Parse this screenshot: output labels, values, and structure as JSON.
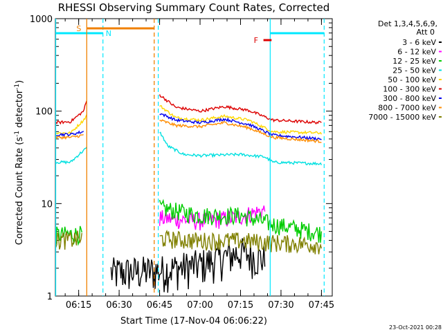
{
  "chart_data": {
    "type": "line",
    "title": "RHESSI Observing Summary Count Rates, Corrected",
    "xlabel": "Start Time (17-Nov-04 06:06:22)",
    "ylabel_main": "Corrected Count Rate (s",
    "ylabel_sup1": "-1",
    "ylabel_mid": " detector",
    "ylabel_sup2": "-1",
    "ylabel_end": ")",
    "yscale": "log",
    "ylim": [
      1,
      1000
    ],
    "xlim": [
      "06:06:22",
      "07:49:00"
    ],
    "xticks": [
      "06:15",
      "06:30",
      "06:45",
      "07:00",
      "07:15",
      "07:30",
      "07:45"
    ],
    "yticks": [
      "1",
      "10",
      "100",
      "1000"
    ],
    "legend_position": "right",
    "legend_header": [
      "Det 1,3,4,5,6,9,",
      "Att 0"
    ],
    "annotations": {
      "S": "S",
      "N": "N",
      "F": "F"
    },
    "footer_date": "23-Oct-2021 00:28",
    "time_segments": {
      "data_gap": [
        "06:18:00",
        "06:44:30"
      ],
      "night": [
        "06:24:00",
        "06:44:30"
      ],
      "saa_bar": [
        "06:18:00",
        "06:43:00"
      ],
      "night_bars": [
        [
          "06:06:22",
          "06:24:00"
        ],
        [
          "07:26:00",
          "07:46:00"
        ]
      ],
      "night_lines": [
        "06:06:30",
        "06:24:00",
        "06:44:30",
        "07:26:00",
        "07:46:00"
      ],
      "flare_marker": [
        "07:23:30",
        "07:26:30"
      ]
    },
    "series": [
      {
        "name": "3 - 6 keV",
        "color": "#000000",
        "pre": null,
        "post": [
          [
            6.45,
            1.8
          ],
          [
            6.75,
            1.9
          ],
          [
            7.0,
            2.2
          ],
          [
            7.25,
            3.0
          ],
          [
            7.4,
            2.5
          ]
        ]
      },
      {
        "name": "6 - 12 keV",
        "color": "#ff00ff",
        "pre": null,
        "post": [
          [
            6.75,
            7.0
          ],
          [
            7.0,
            6.5
          ],
          [
            7.2,
            7.0
          ],
          [
            7.4,
            8.5
          ]
        ]
      },
      {
        "name": "12 - 25 keV",
        "color": "#00cc00",
        "pre": [
          [
            6.106,
            4.6
          ],
          [
            6.27,
            4.7
          ]
        ],
        "post": [
          [
            6.75,
            9.0
          ],
          [
            7.0,
            7.5
          ],
          [
            7.25,
            7.5
          ],
          [
            7.45,
            6.0
          ],
          [
            7.75,
            4.8
          ]
        ]
      },
      {
        "name": "25 - 50 keV",
        "color": "#00e0e0",
        "pre": [
          [
            6.106,
            28
          ],
          [
            6.2,
            28
          ],
          [
            6.26,
            35
          ],
          [
            6.3,
            40
          ]
        ],
        "post": [
          [
            6.75,
            60
          ],
          [
            6.8,
            42
          ],
          [
            6.9,
            34
          ],
          [
            7.0,
            33
          ],
          [
            7.25,
            34
          ],
          [
            7.4,
            32
          ],
          [
            7.45,
            28
          ],
          [
            7.75,
            27
          ]
        ]
      },
      {
        "name": "50 - 100 keV",
        "color": "#ffd700",
        "pre": [
          [
            6.106,
            58
          ],
          [
            6.2,
            58
          ],
          [
            6.28,
            80
          ],
          [
            6.3,
            90
          ]
        ],
        "post": [
          [
            6.75,
            115
          ],
          [
            6.85,
            85
          ],
          [
            7.0,
            80
          ],
          [
            7.15,
            88
          ],
          [
            7.3,
            80
          ],
          [
            7.45,
            60
          ],
          [
            7.75,
            58
          ]
        ]
      },
      {
        "name": "100 - 300 keV",
        "color": "#dd0000",
        "pre": [
          [
            6.106,
            75
          ],
          [
            6.2,
            77
          ],
          [
            6.28,
            100
          ],
          [
            6.3,
            130
          ]
        ],
        "post": [
          [
            6.75,
            150
          ],
          [
            6.85,
            110
          ],
          [
            7.0,
            100
          ],
          [
            7.15,
            112
          ],
          [
            7.3,
            102
          ],
          [
            7.45,
            80
          ],
          [
            7.75,
            75
          ]
        ]
      },
      {
        "name": "300 - 800 keV",
        "color": "#0000ee",
        "pre": [
          [
            6.106,
            56
          ],
          [
            6.2,
            56
          ],
          [
            6.28,
            60
          ]
        ],
        "post": [
          [
            6.75,
            95
          ],
          [
            6.85,
            80
          ],
          [
            7.0,
            75
          ],
          [
            7.15,
            82
          ],
          [
            7.3,
            72
          ],
          [
            7.45,
            55
          ],
          [
            7.75,
            50
          ]
        ]
      },
      {
        "name": "800 - 7000 keV",
        "color": "#ff8c00",
        "pre": [
          [
            6.106,
            52
          ],
          [
            6.2,
            52
          ],
          [
            6.28,
            55
          ]
        ],
        "post": [
          [
            6.75,
            80
          ],
          [
            6.85,
            70
          ],
          [
            7.0,
            68
          ],
          [
            7.15,
            75
          ],
          [
            7.3,
            66
          ],
          [
            7.45,
            52
          ],
          [
            7.75,
            47
          ]
        ]
      },
      {
        "name": "7000 - 15000 keV",
        "color": "#808000",
        "pre": [
          [
            6.106,
            4.0
          ],
          [
            6.27,
            4.2
          ]
        ],
        "post": [
          [
            6.75,
            4.2
          ],
          [
            7.0,
            4.0
          ],
          [
            7.25,
            4.0
          ],
          [
            7.45,
            3.8
          ],
          [
            7.75,
            3.6
          ]
        ]
      }
    ]
  }
}
